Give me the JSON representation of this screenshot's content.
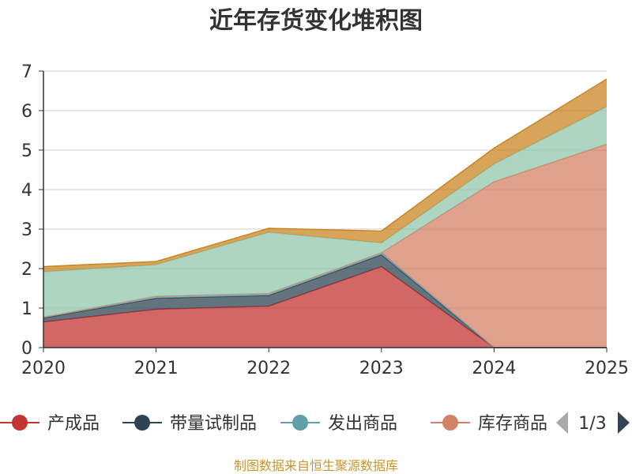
{
  "chart_data": {
    "type": "area",
    "stacked": true,
    "title": "近年存货变化堆积图",
    "ylabel": "",
    "x": [
      "2020",
      "2021",
      "2022",
      "2023",
      "2024",
      "2025"
    ],
    "ylim": [
      0,
      7
    ],
    "yticks": [
      0,
      1,
      2,
      3,
      4,
      5,
      6,
      7
    ],
    "grid": true,
    "series": [
      {
        "name": "产成品",
        "values": [
          0.65,
          0.97,
          1.05,
          2.05,
          0.0,
          0.0
        ],
        "color": "#c23531"
      },
      {
        "name": "带量试制品",
        "values": [
          0.1,
          0.28,
          0.27,
          0.3,
          0.0,
          0.0
        ],
        "color": "#2f4554"
      },
      {
        "name": "发出商品",
        "values": [
          0.02,
          0.05,
          0.05,
          0.05,
          0.0,
          0.0
        ],
        "color": "#61a0a8"
      },
      {
        "name": "库存商品",
        "values": [
          0.0,
          0.0,
          0.0,
          0.0,
          4.2,
          5.15
        ],
        "color": "#d48265"
      },
      {
        "name": "",
        "values": [
          1.15,
          0.8,
          1.55,
          0.25,
          0.45,
          0.95
        ],
        "color": "#91c7ae"
      },
      {
        "name": "",
        "values": [
          0.13,
          0.08,
          0.1,
          0.3,
          0.4,
          0.7
        ],
        "color": "#ca8622"
      }
    ],
    "legend": {
      "placement": "bottom",
      "visible_items": [
        "产成品",
        "带量试制品",
        "发出商品",
        "库存商品"
      ],
      "page": "1/3"
    }
  },
  "footer": "制图数据来自恒生聚源数据库"
}
